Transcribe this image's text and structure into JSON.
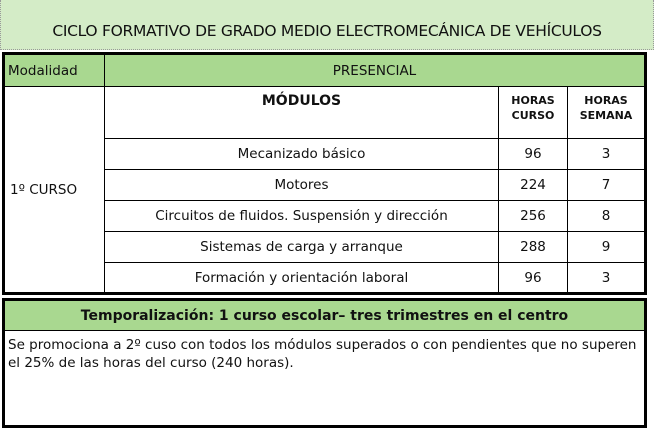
{
  "title": "CICLO FORMATIVO DE GRADO MEDIO ELECTROMECÁNICA DE VEHÍCULOS",
  "modalidad": {
    "label": "Modalidad",
    "value": "PRESENCIAL"
  },
  "course": "1º CURSO",
  "headers": {
    "modulos": "MÓDULOS",
    "horas_curso": [
      "HORAS",
      "CURSO"
    ],
    "horas_semana": [
      "HORAS",
      "SEMANA"
    ]
  },
  "rows": [
    {
      "module": "Mecanizado básico",
      "curso": "96",
      "semana": "3"
    },
    {
      "module": "Motores",
      "curso": "224",
      "semana": "7"
    },
    {
      "module": "Circuitos de fluidos. Suspensión y dirección",
      "curso": "256",
      "semana": "8"
    },
    {
      "module": "Sistemas de carga y arranque",
      "curso": "288",
      "semana": "9"
    },
    {
      "module": "Formación y orientación laboral",
      "curso": "96",
      "semana": "3"
    }
  ],
  "temporalizacion": {
    "heading": "Temporalización: 1 curso escolar– tres trimestres en el centro",
    "text": "Se promociona a 2º cuso con todos los  módulos superados o con  pendientes que no superen el 25% de las horas del curso  (240 horas)."
  },
  "colors": {
    "title_bg": "#d4ecc7",
    "header_green": "#a9d890"
  }
}
